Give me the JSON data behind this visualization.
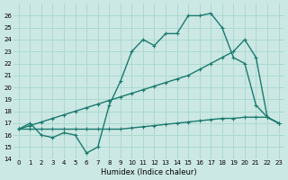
{
  "xlabel": "Humidex (Indice chaleur)",
  "bg_color": "#cce8e4",
  "line_color": "#1a7a6e",
  "grid_color": "#aad8d0",
  "xlim_min": -0.5,
  "xlim_max": 23.5,
  "ylim_min": 14,
  "ylim_max": 27,
  "xticks": [
    0,
    1,
    2,
    3,
    4,
    5,
    6,
    7,
    8,
    9,
    10,
    11,
    12,
    13,
    14,
    15,
    16,
    17,
    18,
    19,
    20,
    21,
    22,
    23
  ],
  "yticks": [
    14,
    15,
    16,
    17,
    18,
    19,
    20,
    21,
    22,
    23,
    24,
    25,
    26
  ],
  "s1_x": [
    0,
    1,
    2,
    3,
    4,
    5,
    6,
    7,
    8,
    9,
    10,
    11,
    12,
    13,
    14,
    15,
    16,
    17,
    18,
    19,
    20,
    21,
    22,
    23
  ],
  "s1_y": [
    16.5,
    17.0,
    16.0,
    15.8,
    16.2,
    16.0,
    14.5,
    15.0,
    18.5,
    20.5,
    23.0,
    24.0,
    23.5,
    24.5,
    24.5,
    26.0,
    26.0,
    26.2,
    25.0,
    22.5,
    22.0,
    18.5,
    17.5,
    17.0
  ],
  "s2_x": [
    0,
    1,
    2,
    3,
    4,
    5,
    6,
    7,
    8,
    9,
    10,
    11,
    12,
    13,
    14,
    15,
    16,
    17,
    18,
    19,
    20,
    21,
    22,
    23
  ],
  "s2_y": [
    16.5,
    16.8,
    17.1,
    17.4,
    17.7,
    18.0,
    18.3,
    18.6,
    18.9,
    19.2,
    19.5,
    19.8,
    20.1,
    20.4,
    20.7,
    21.0,
    21.5,
    22.0,
    22.5,
    23.0,
    24.0,
    22.5,
    17.5,
    17.0
  ],
  "s3_x": [
    0,
    1,
    2,
    3,
    4,
    5,
    6,
    7,
    8,
    9,
    10,
    11,
    12,
    13,
    14,
    15,
    16,
    17,
    18,
    19,
    20,
    21,
    22,
    23
  ],
  "s3_y": [
    16.5,
    16.5,
    16.5,
    16.5,
    16.5,
    16.5,
    16.5,
    16.5,
    16.5,
    16.5,
    16.6,
    16.7,
    16.8,
    16.9,
    17.0,
    17.1,
    17.2,
    17.3,
    17.4,
    17.4,
    17.5,
    17.5,
    17.5,
    17.0
  ]
}
